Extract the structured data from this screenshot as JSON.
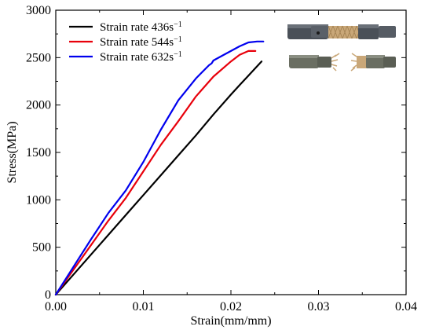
{
  "chart_data": {
    "type": "line",
    "xlabel": "Strain(mm/mm)",
    "ylabel": "Stress(MPa)",
    "xlim": [
      0,
      0.04
    ],
    "ylim": [
      0,
      3000
    ],
    "x_ticks": [
      0.0,
      0.01,
      0.02,
      0.03,
      0.04
    ],
    "x_tick_labels": [
      "0.00",
      "0.01",
      "0.02",
      "0.03",
      "0.04"
    ],
    "y_ticks": [
      0,
      500,
      1000,
      1500,
      2000,
      2500,
      3000
    ],
    "y_tick_labels": [
      "0",
      "500",
      "1000",
      "1500",
      "2000",
      "2500",
      "3000"
    ],
    "grid": false,
    "legend_position": "top-left",
    "series": [
      {
        "name": "Strain rate 436s",
        "name_sup": "−1",
        "color": "#000000",
        "x": [
          0,
          0.002,
          0.004,
          0.006,
          0.008,
          0.01,
          0.012,
          0.014,
          0.016,
          0.018,
          0.02,
          0.021,
          0.022,
          0.023,
          0.0235
        ],
        "y": [
          0,
          210,
          420,
          630,
          840,
          1050,
          1260,
          1470,
          1680,
          1900,
          2110,
          2210,
          2310,
          2410,
          2460
        ]
      },
      {
        "name": "Strain rate 544s",
        "name_sup": "−1",
        "color": "#e8000b",
        "x": [
          0,
          0.002,
          0.004,
          0.006,
          0.008,
          0.01,
          0.012,
          0.014,
          0.016,
          0.018,
          0.02,
          0.021,
          0.022,
          0.0228
        ],
        "y": [
          0,
          260,
          520,
          780,
          1020,
          1300,
          1580,
          1830,
          2090,
          2300,
          2460,
          2530,
          2570,
          2570
        ]
      },
      {
        "name": "Strain rate 632s",
        "name_sup": "−1",
        "color": "#0000ee",
        "x": [
          0,
          0.002,
          0.004,
          0.006,
          0.008,
          0.01,
          0.012,
          0.014,
          0.016,
          0.0175,
          0.0178,
          0.018,
          0.019,
          0.02,
          0.021,
          0.022,
          0.023,
          0.0237
        ],
        "y": [
          0,
          290,
          580,
          860,
          1100,
          1400,
          1740,
          2050,
          2280,
          2420,
          2440,
          2470,
          2520,
          2570,
          2620,
          2660,
          2670,
          2670
        ]
      }
    ]
  },
  "inset": {
    "description_icon": "specimen-photo-icon",
    "top_specimen": "intact-specimen-icon",
    "bottom_specimen": "fractured-specimen-icon"
  }
}
